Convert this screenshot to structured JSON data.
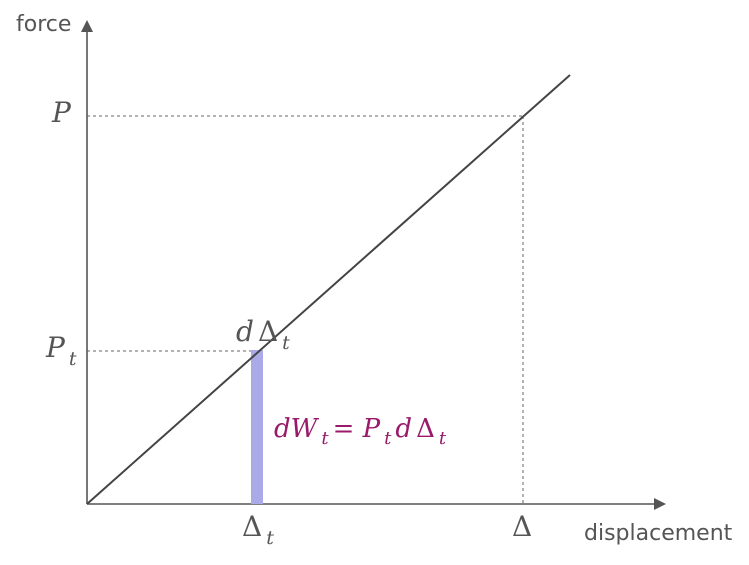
{
  "axes": {
    "y_label": "force",
    "x_label": "displacement"
  },
  "labels": {
    "P": "P",
    "P_t": {
      "main": "P",
      "sub": "t"
    },
    "delta_t": {
      "main": "Δ",
      "sub": "t"
    },
    "delta": "Δ",
    "d_delta_t": {
      "prefix": "d",
      "main": "Δ",
      "sub": "t"
    }
  },
  "equation": {
    "lhs_main": "dW",
    "lhs_sub": "t",
    "equals": " = ",
    "rhs_p": "P",
    "rhs_p_sub": "t",
    "rhs_d": " d",
    "rhs_delta": "Δ",
    "rhs_delta_sub": "t"
  },
  "colors": {
    "axis": "#555555",
    "line": "#444444",
    "strip": "#aaaae8",
    "equation": "#99196b"
  }
}
